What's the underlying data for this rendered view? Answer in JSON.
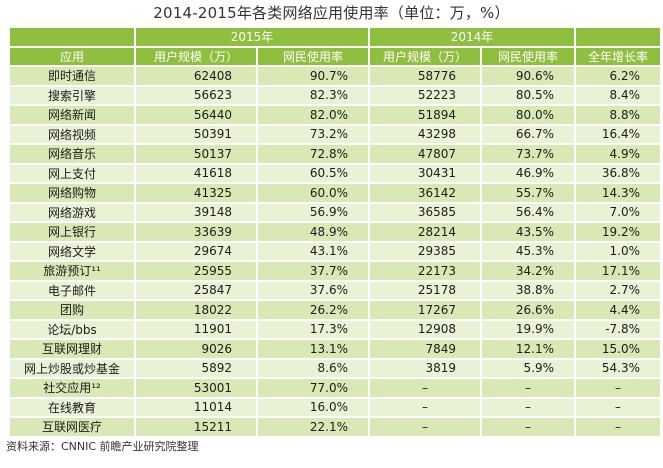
{
  "title": "2014-2015年各类网络应用使用率（单位：万，%）",
  "source": "资料来源：CNNIC 前瞻产业研究院整理",
  "colors": {
    "header": "#8fbf3e",
    "row_a": "#d9e9b5",
    "row_b": "#e9f2d5"
  },
  "chart_data": {
    "type": "table",
    "title": "2014-2015年各类网络应用使用率（单位：万，%）",
    "year_headers": [
      "2015年",
      "2014年"
    ],
    "columns": [
      "应用",
      "用户规模（万）",
      "网民使用率",
      "用户规模（万）",
      "网民使用率",
      "全年增长率"
    ],
    "rows": [
      [
        "即时通信",
        "62408",
        "90.7%",
        "58776",
        "90.6%",
        "6.2%"
      ],
      [
        "搜索引擎",
        "56623",
        "82.3%",
        "52223",
        "80.5%",
        "8.4%"
      ],
      [
        "网络新闻",
        "56440",
        "82.0%",
        "51894",
        "80.0%",
        "8.8%"
      ],
      [
        "网络视频",
        "50391",
        "73.2%",
        "43298",
        "66.7%",
        "16.4%"
      ],
      [
        "网络音乐",
        "50137",
        "72.8%",
        "47807",
        "73.7%",
        "4.9%"
      ],
      [
        "网上支付",
        "41618",
        "60.5%",
        "30431",
        "46.9%",
        "36.8%"
      ],
      [
        "网络购物",
        "41325",
        "60.0%",
        "36142",
        "55.7%",
        "14.3%"
      ],
      [
        "网络游戏",
        "39148",
        "56.9%",
        "36585",
        "56.4%",
        "7.0%"
      ],
      [
        "网上银行",
        "33639",
        "48.9%",
        "28214",
        "43.5%",
        "19.2%"
      ],
      [
        "网络文学",
        "29674",
        "43.1%",
        "29385",
        "45.3%",
        "1.0%"
      ],
      [
        "旅游预订¹¹",
        "25955",
        "37.7%",
        "22173",
        "34.2%",
        "17.1%"
      ],
      [
        "电子邮件",
        "25847",
        "37.6%",
        "25178",
        "38.8%",
        "2.7%"
      ],
      [
        "团购",
        "18022",
        "26.2%",
        "17267",
        "26.6%",
        "4.4%"
      ],
      [
        "论坛/bbs",
        "11901",
        "17.3%",
        "12908",
        "19.9%",
        "-7.8%"
      ],
      [
        "互联网理财",
        "9026",
        "13.1%",
        "7849",
        "12.1%",
        "15.0%"
      ],
      [
        "网上炒股或炒基金",
        "5892",
        "8.6%",
        "3819",
        "5.9%",
        "54.3%"
      ],
      [
        "社交应用¹²",
        "53001",
        "77.0%",
        "–",
        "–",
        "–"
      ],
      [
        "在线教育",
        "11014",
        "16.0%",
        "–",
        "–",
        "–"
      ],
      [
        "互联网医疗",
        "15211",
        "22.1%",
        "–",
        "–",
        "–"
      ]
    ]
  }
}
